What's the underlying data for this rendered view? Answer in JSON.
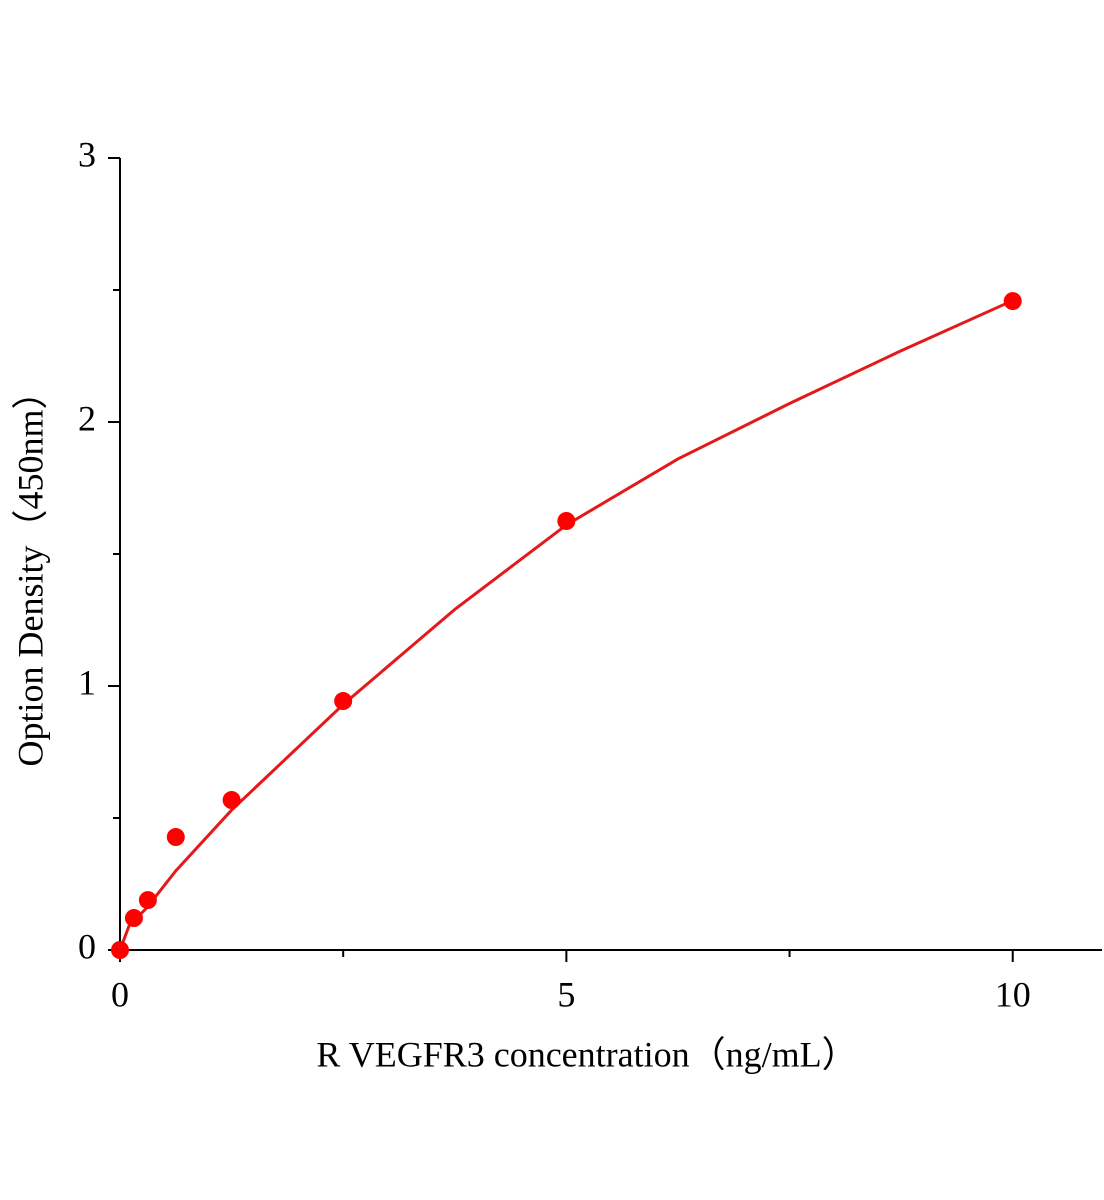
{
  "chart_data": {
    "type": "scatter",
    "xlabel": "R VEGFR3 concentration（ng/mL）",
    "ylabel": "Option Density（450nm）",
    "xlim": [
      0,
      11
    ],
    "xticks": [
      0,
      5,
      10
    ],
    "xminorticks": [
      2.5,
      7.5
    ],
    "ylim": [
      0,
      3
    ],
    "yticks": [
      0,
      1,
      2,
      3
    ],
    "yminorticks": [
      0.5,
      1.5,
      2.5
    ],
    "series": [
      {
        "color": "#ff0000",
        "x": [
          0,
          0.156,
          0.3125,
          0.625,
          1.25,
          2.5,
          5,
          10
        ],
        "values": [
          0,
          0.121,
          0.189,
          0.428,
          0.568,
          0.943,
          1.625,
          2.458
        ]
      }
    ],
    "fit": {
      "color": "#e31a1c",
      "x": [
        0,
        0.1,
        0.3,
        0.625,
        1.25,
        2.5,
        3.75,
        5,
        6.25,
        7.5,
        8.75,
        10
      ],
      "values": [
        0,
        0.09,
        0.16,
        0.3,
        0.53,
        0.93,
        1.29,
        1.61,
        1.86,
        2.07,
        2.27,
        2.46
      ]
    }
  }
}
